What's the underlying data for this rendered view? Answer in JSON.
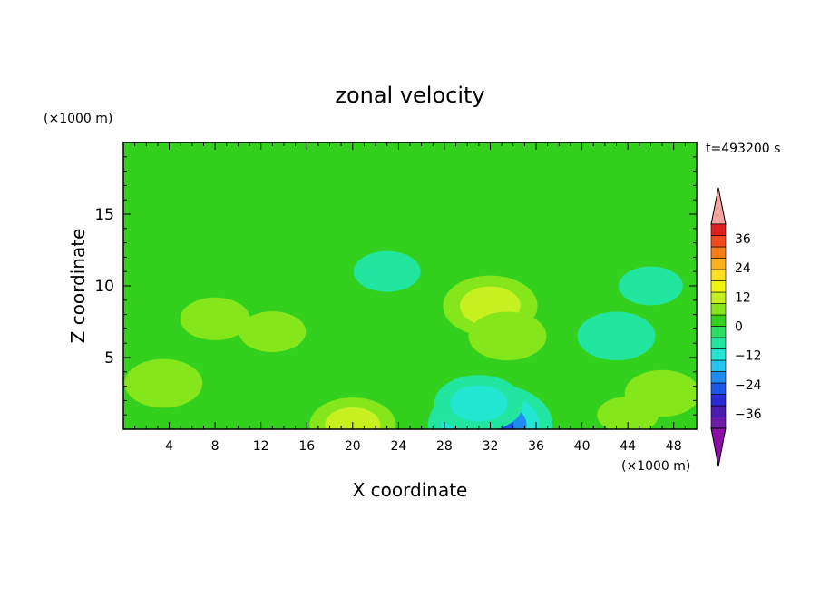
{
  "chart_data": {
    "type": "heatmap",
    "title": "zonal velocity",
    "timestamp": "t=493200 s",
    "xlabel": "X coordinate",
    "ylabel": "Z coordinate",
    "x_unit": "(×1000 m)",
    "y_unit": "(×1000 m)",
    "xlim": [
      0,
      50
    ],
    "ylim": [
      0,
      20
    ],
    "xticks": [
      4,
      8,
      12,
      16,
      20,
      24,
      28,
      32,
      36,
      40,
      44,
      48
    ],
    "yticks": [
      5,
      10,
      15
    ],
    "colorbar": {
      "range": [
        -42,
        42
      ],
      "ticks": [
        36,
        24,
        12,
        0,
        -12,
        -24,
        -36
      ],
      "tick_labels": [
        "36",
        "24",
        "12",
        "0",
        "−12",
        "−24",
        "−36"
      ],
      "over_color": "#f4a4a0",
      "under_color": "#8b0fa8",
      "colors": [
        "#6d1aa8",
        "#4b1cb0",
        "#2a2ad6",
        "#1c58e8",
        "#1e8cf0",
        "#27c4f0",
        "#23e6d2",
        "#22e6a0",
        "#2cdf62",
        "#33d11e",
        "#86e61c",
        "#c6f020",
        "#f0f40e",
        "#fde020",
        "#fcb01a",
        "#f77e17",
        "#f24a1e",
        "#e01e1e"
      ]
    },
    "series": [
      {
        "name": "field",
        "levels": [
          -36,
          -30,
          -24,
          -18,
          -12,
          -6,
          0,
          6,
          12,
          18
        ]
      }
    ],
    "features": [
      {
        "x": 32,
        "z": 8.6,
        "u": 16
      },
      {
        "x": 33.5,
        "z": 6.5,
        "u": 10
      },
      {
        "x": 20,
        "z": 0.3,
        "u": 13
      },
      {
        "x": 32,
        "z": 0.3,
        "u": -27
      },
      {
        "x": 31,
        "z": 1.8,
        "u": -14
      },
      {
        "x": 23,
        "z": 11,
        "u": -6
      },
      {
        "x": 3.5,
        "z": 3.2,
        "u": 10
      },
      {
        "x": 8,
        "z": 7.7,
        "u": 7
      },
      {
        "x": 13,
        "z": 6.8,
        "u": 6
      },
      {
        "x": 47,
        "z": 2.5,
        "u": 9
      },
      {
        "x": 44,
        "z": 1,
        "u": 4
      },
      {
        "x": 46,
        "z": 10,
        "u": -5
      },
      {
        "x": 43,
        "z": 6.5,
        "u": -10
      }
    ]
  }
}
